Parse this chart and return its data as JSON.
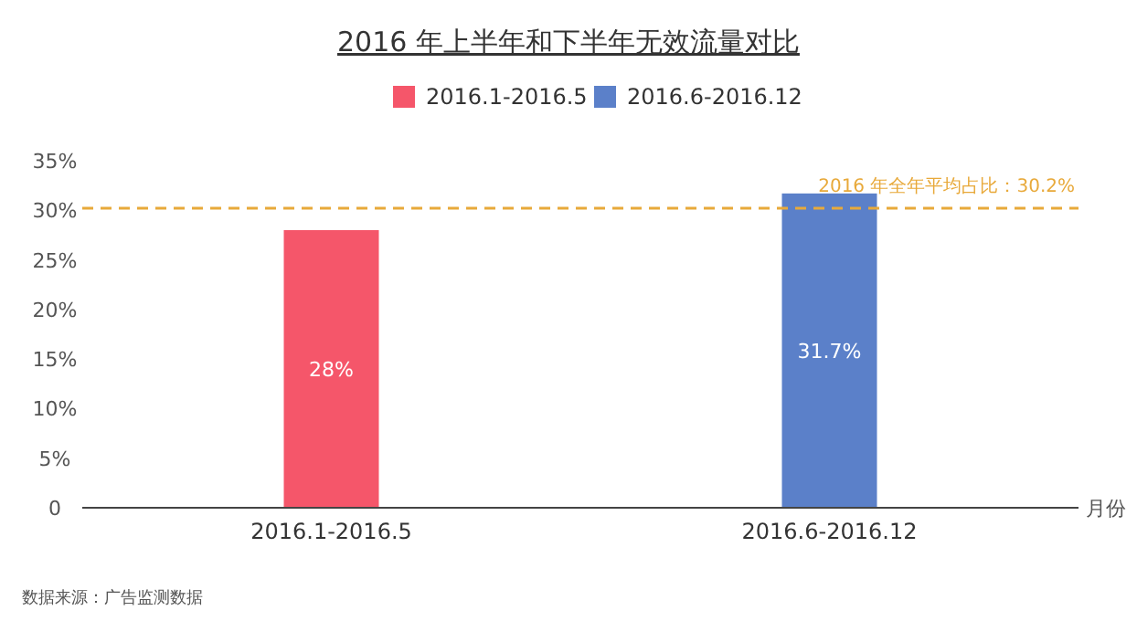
{
  "chart_data": {
    "type": "bar",
    "title": "2016 年上半年和下半年无效流量对比",
    "categories": [
      "2016.1-2016.5",
      "2016.6-2016.12"
    ],
    "values": [
      28,
      31.7
    ],
    "colors": [
      "#f5566a",
      "#5b80c9"
    ],
    "value_labels": [
      "28%",
      "31.7%"
    ],
    "xlabel": "月份",
    "ylim": [
      0,
      35
    ],
    "yticks": [
      0,
      {
        "value": 5,
        "label": "5%"
      },
      {
        "value": 10,
        "label": "10%"
      },
      {
        "value": 15,
        "label": "15%"
      },
      {
        "value": 20,
        "label": "20%"
      },
      {
        "value": 25,
        "label": "25%"
      },
      {
        "value": 30,
        "label": "30%"
      },
      {
        "value": 35,
        "label": "35%"
      }
    ],
    "ref_lines": [
      {
        "axis": "y",
        "value": 30.2,
        "label": "2016 年全年平均占比：30.2%",
        "color": "#e8a93a",
        "line_style": "dashed"
      }
    ],
    "legend": "top",
    "annotations": [
      "数据来源：广告监测数据"
    ]
  }
}
